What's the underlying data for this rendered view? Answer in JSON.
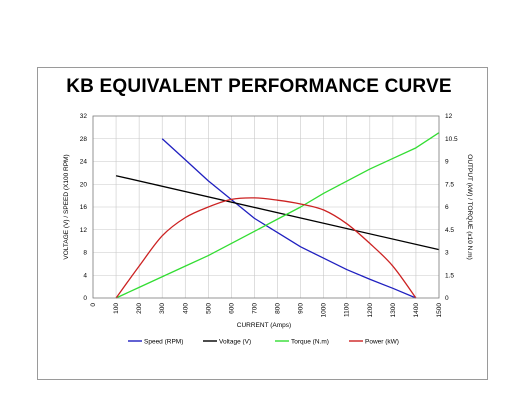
{
  "chart_data": {
    "type": "line",
    "title": "KB EQUIVALENT PERFORMANCE CURVE",
    "xlabel": "CURRENT (Amps)",
    "ylabel_left": "VOLTAGE (V) / SPEED (X100 RPM)",
    "ylabel_right": "OUTPUT (kW) / TORQUE (x10 N.m)",
    "xlim": [
      0,
      1500
    ],
    "xticks": [
      0,
      100,
      200,
      300,
      400,
      500,
      600,
      700,
      800,
      900,
      1000,
      1100,
      1200,
      1300,
      1400,
      1500
    ],
    "ylim_left": [
      0,
      32
    ],
    "yticks_left": [
      0,
      4,
      8,
      12,
      16,
      20,
      24,
      28,
      32
    ],
    "ylim_right": [
      0,
      12
    ],
    "yticks_right": [
      "0",
      "1.5",
      "3",
      "4.5",
      "6",
      "7.5",
      "9",
      "10.5",
      "12"
    ],
    "grid": true,
    "legend_position": "bottom",
    "series": [
      {
        "name": "Speed (RPM)",
        "axis": "left",
        "color": "#2020c0",
        "x": [
          300,
          400,
          500,
          600,
          700,
          800,
          900,
          1000,
          1100,
          1200,
          1300,
          1400
        ],
        "y": [
          28,
          24.3,
          20.6,
          17.3,
          14,
          11.5,
          9,
          7,
          5,
          3.3,
          1.7,
          0
        ]
      },
      {
        "name": "Voltage (V)",
        "axis": "left",
        "color": "#000000",
        "x": [
          100,
          1500
        ],
        "y": [
          21.5,
          8.5
        ]
      },
      {
        "name": "Torque (N.m)",
        "axis": "right",
        "color": "#33dd33",
        "x": [
          100,
          200,
          300,
          400,
          500,
          600,
          700,
          800,
          900,
          1000,
          1100,
          1200,
          1300,
          1400,
          1500
        ],
        "y": [
          0,
          0.7,
          1.4,
          2.1,
          2.8,
          3.6,
          4.4,
          5.2,
          6.0,
          6.9,
          7.7,
          8.5,
          9.2,
          9.9,
          10.9
        ]
      },
      {
        "name": "Power (kW)",
        "axis": "right",
        "color": "#cc2222",
        "x": [
          100,
          200,
          300,
          400,
          500,
          600,
          700,
          800,
          900,
          1000,
          1100,
          1200,
          1300,
          1400
        ],
        "y": [
          0,
          2.1,
          4.1,
          5.3,
          6.0,
          6.5,
          6.6,
          6.45,
          6.2,
          5.8,
          4.9,
          3.6,
          2.1,
          0
        ]
      }
    ]
  }
}
